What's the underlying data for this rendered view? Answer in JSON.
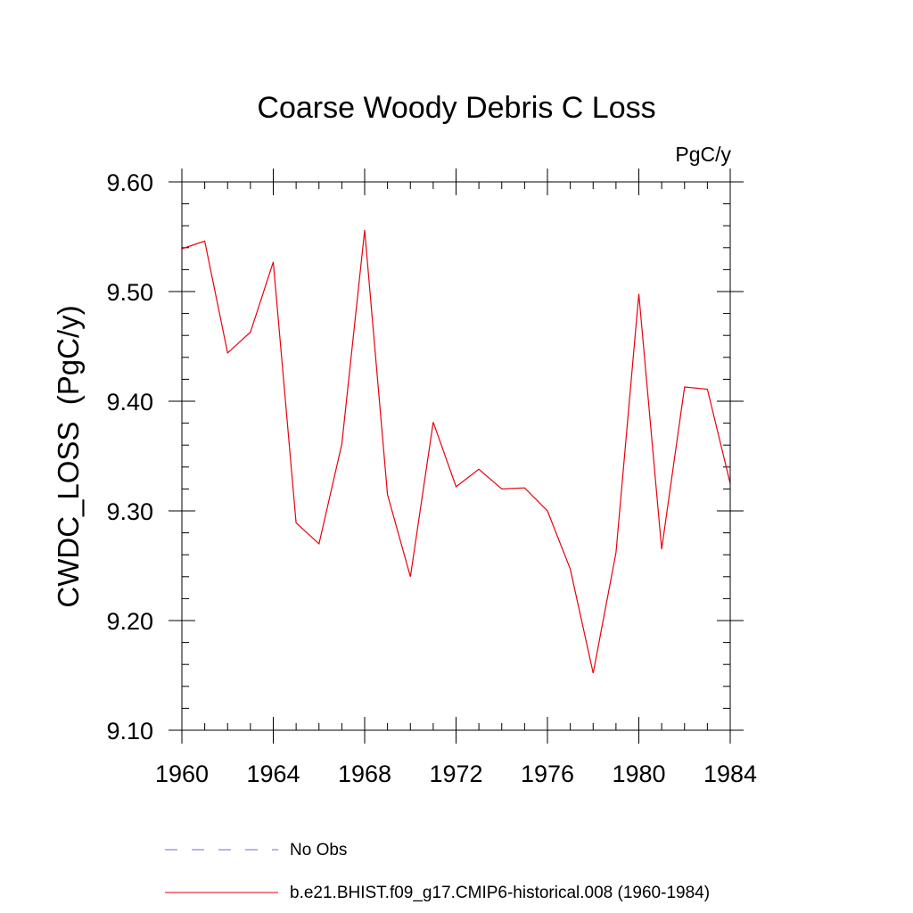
{
  "chart_data": {
    "type": "line",
    "title": "Coarse Woody Debris C Loss",
    "units_label": "PgC/y",
    "ylabel": "CWDC_LOSS  (PgC/y)",
    "xlabel": "",
    "xlim": [
      1960,
      1984
    ],
    "ylim": [
      9.1,
      9.6
    ],
    "x_ticks": [
      1960,
      1964,
      1968,
      1972,
      1976,
      1980,
      1984
    ],
    "x_tick_labels": [
      "1960",
      "1964",
      "1968",
      "1972",
      "1976",
      "1980",
      "1984"
    ],
    "y_ticks": [
      9.1,
      9.2,
      9.3,
      9.4,
      9.5,
      9.6
    ],
    "y_tick_labels": [
      "9.10",
      "9.20",
      "9.30",
      "9.40",
      "9.50",
      "9.60"
    ],
    "legend_position": "bottom",
    "legend": [
      {
        "label": "No Obs",
        "color": "#6b6bd8",
        "dash": true
      },
      {
        "label": "b.e21.BHIST.f09_g17.CMIP6-historical.008 (1960-1984)",
        "color": "#e8000b",
        "dash": false
      }
    ],
    "series": [
      {
        "name": "b.e21.BHIST.f09_g17.CMIP6-historical.008 (1960-1984)",
        "color": "#e8000b",
        "x": [
          1960,
          1961,
          1962,
          1963,
          1964,
          1965,
          1966,
          1967,
          1968,
          1969,
          1970,
          1971,
          1972,
          1973,
          1974,
          1975,
          1976,
          1977,
          1978,
          1979,
          1980,
          1981,
          1982,
          1983,
          1984
        ],
        "values": [
          9.539,
          9.546,
          9.444,
          9.463,
          9.527,
          9.289,
          9.27,
          9.361,
          9.556,
          9.315,
          9.24,
          9.381,
          9.322,
          9.338,
          9.32,
          9.321,
          9.3,
          9.247,
          9.152,
          9.262,
          9.498,
          9.265,
          9.413,
          9.411,
          9.325
        ]
      }
    ]
  }
}
